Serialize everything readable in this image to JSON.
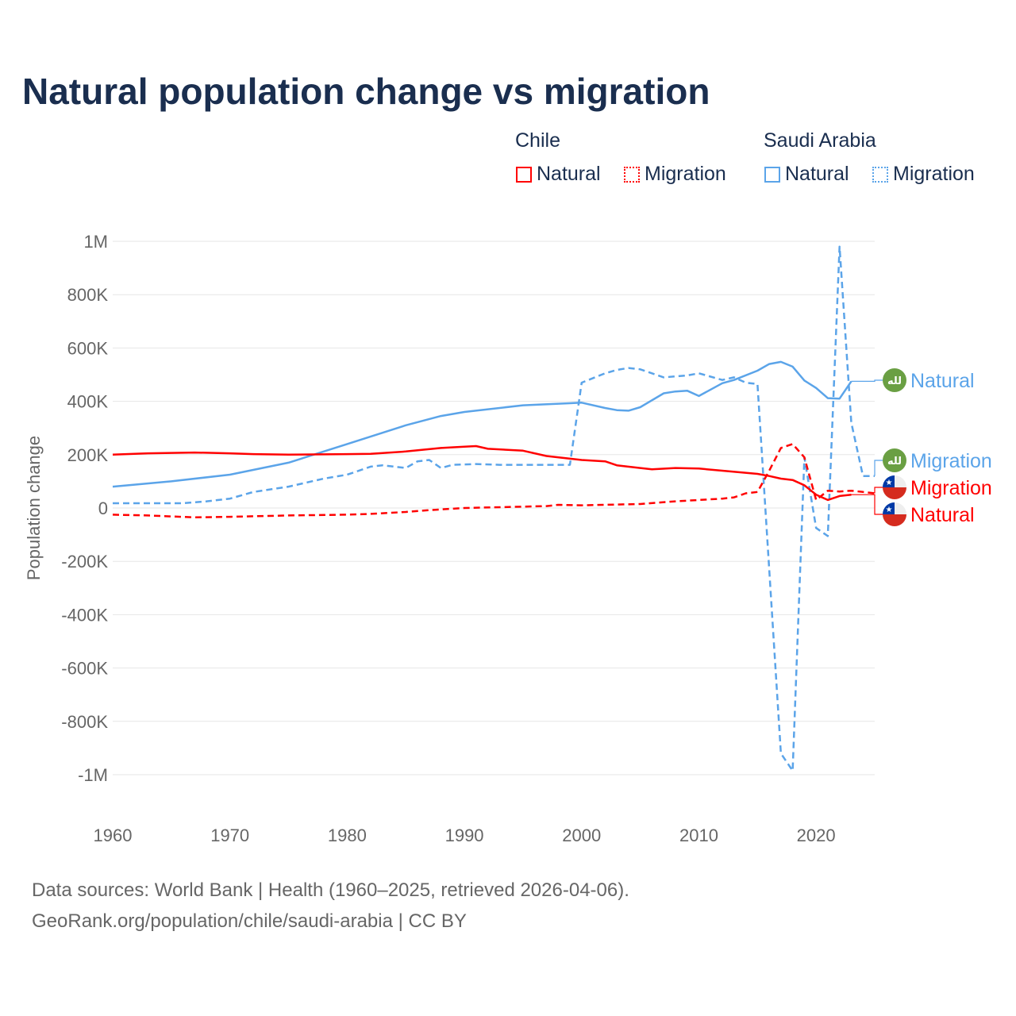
{
  "title": "Natural population change vs migration",
  "legend": {
    "groups": [
      {
        "name": "Chile",
        "items": [
          {
            "label": "Natural",
            "style": "solid",
            "color": "#ff0000"
          },
          {
            "label": "Migration",
            "style": "dotted",
            "color": "#ff0000"
          }
        ]
      },
      {
        "name": "Saudi Arabia",
        "items": [
          {
            "label": "Natural",
            "style": "solid",
            "color": "#5ba4e9"
          },
          {
            "label": "Migration",
            "style": "dotted",
            "color": "#5ba4e9"
          }
        ]
      }
    ]
  },
  "footer": {
    "line1": "Data sources: World Bank | Health (1960–2025, retrieved 2026-04-06).",
    "line2": "GeoRank.org/population/chile/saudi-arabia | CC BY"
  },
  "chart_data": {
    "type": "line",
    "title": "Natural population change vs migration",
    "xlabel": "",
    "ylabel": "Population change",
    "xlim": [
      1960,
      2025
    ],
    "ylim": [
      -1000000,
      1000000
    ],
    "x_ticks": [
      1960,
      1970,
      1980,
      1990,
      2000,
      2010,
      2020
    ],
    "x_tick_labels": [
      "1960",
      "1970",
      "1980",
      "1990",
      "2000",
      "2010",
      "2020"
    ],
    "y_ticks": [
      1000000,
      800000,
      600000,
      400000,
      200000,
      0,
      -200000,
      -400000,
      -600000,
      -800000,
      -1000000
    ],
    "y_tick_labels": [
      "1M",
      "800K",
      "600K",
      "400K",
      "200K",
      "0",
      "-200K",
      "-400K",
      "-600K",
      "-800K",
      "-1M"
    ],
    "grid": true,
    "legend_position": "top-right",
    "series": [
      {
        "name": "Chile Natural",
        "end_label": "Natural",
        "flag": "chile",
        "color": "#ff0000",
        "dash": "solid",
        "points": [
          [
            1960,
            200
          ],
          [
            1963,
            205
          ],
          [
            1967,
            208
          ],
          [
            1970,
            205
          ],
          [
            1972,
            202
          ],
          [
            1975,
            200
          ],
          [
            1980,
            202
          ],
          [
            1982,
            203
          ],
          [
            1985,
            212
          ],
          [
            1988,
            225
          ],
          [
            1990,
            230
          ],
          [
            1991,
            232
          ],
          [
            1992,
            222
          ],
          [
            1995,
            215
          ],
          [
            1997,
            195
          ],
          [
            2000,
            180
          ],
          [
            2002,
            175
          ],
          [
            2003,
            160
          ],
          [
            2005,
            150
          ],
          [
            2006,
            145
          ],
          [
            2008,
            150
          ],
          [
            2010,
            148
          ],
          [
            2012,
            140
          ],
          [
            2015,
            128
          ],
          [
            2016,
            120
          ],
          [
            2017,
            110
          ],
          [
            2018,
            105
          ],
          [
            2019,
            85
          ],
          [
            2020,
            50
          ],
          [
            2021,
            30
          ],
          [
            2022,
            45
          ],
          [
            2023,
            50
          ]
        ]
      },
      {
        "name": "Chile Migration",
        "end_label": "Migration",
        "flag": "chile",
        "color": "#ff0000",
        "dash": "dashed",
        "points": [
          [
            1960,
            -25
          ],
          [
            1963,
            -28
          ],
          [
            1967,
            -35
          ],
          [
            1970,
            -33
          ],
          [
            1975,
            -28
          ],
          [
            1980,
            -25
          ],
          [
            1982,
            -22
          ],
          [
            1985,
            -15
          ],
          [
            1987,
            -8
          ],
          [
            1990,
            0
          ],
          [
            1995,
            5
          ],
          [
            1997,
            7
          ],
          [
            1998,
            12
          ],
          [
            2000,
            10
          ],
          [
            2005,
            15
          ],
          [
            2008,
            25
          ],
          [
            2010,
            30
          ],
          [
            2012,
            35
          ],
          [
            2013,
            40
          ],
          [
            2014,
            55
          ],
          [
            2015,
            60
          ],
          [
            2016,
            140
          ],
          [
            2017,
            225
          ],
          [
            2018,
            240
          ],
          [
            2019,
            190
          ],
          [
            2020,
            30
          ],
          [
            2021,
            65
          ],
          [
            2022,
            62
          ],
          [
            2023,
            65
          ],
          [
            2024,
            60
          ],
          [
            2025,
            55
          ]
        ]
      },
      {
        "name": "Saudi Arabia Natural",
        "end_label": "Natural",
        "flag": "saudi-arabia",
        "color": "#5ba4e9",
        "dash": "solid",
        "points": [
          [
            1960,
            80
          ],
          [
            1965,
            100
          ],
          [
            1970,
            125
          ],
          [
            1975,
            170
          ],
          [
            1980,
            240
          ],
          [
            1985,
            310
          ],
          [
            1988,
            345
          ],
          [
            1990,
            360
          ],
          [
            1995,
            385
          ],
          [
            1999,
            393
          ],
          [
            2000,
            395
          ],
          [
            2002,
            375
          ],
          [
            2003,
            367
          ],
          [
            2004,
            365
          ],
          [
            2005,
            378
          ],
          [
            2007,
            430
          ],
          [
            2008,
            437
          ],
          [
            2009,
            440
          ],
          [
            2010,
            420
          ],
          [
            2012,
            468
          ],
          [
            2013,
            480
          ],
          [
            2015,
            515
          ],
          [
            2016,
            540
          ],
          [
            2017,
            548
          ],
          [
            2018,
            530
          ],
          [
            2019,
            478
          ],
          [
            2020,
            450
          ],
          [
            2021,
            412
          ],
          [
            2022,
            410
          ],
          [
            2023,
            475
          ]
        ]
      },
      {
        "name": "Saudi Arabia Migration",
        "end_label": "Migration",
        "flag": "saudi-arabia",
        "color": "#5ba4e9",
        "dash": "dashed",
        "points": [
          [
            1960,
            18
          ],
          [
            1966,
            18
          ],
          [
            1968,
            25
          ],
          [
            1970,
            35
          ],
          [
            1972,
            60
          ],
          [
            1975,
            80
          ],
          [
            1978,
            110
          ],
          [
            1980,
            125
          ],
          [
            1982,
            155
          ],
          [
            1983,
            160
          ],
          [
            1985,
            150
          ],
          [
            1986,
            175
          ],
          [
            1987,
            180
          ],
          [
            1988,
            150
          ],
          [
            1989,
            162
          ],
          [
            1991,
            165
          ],
          [
            1993,
            162
          ],
          [
            1999,
            162
          ],
          [
            2000,
            470
          ],
          [
            2002,
            505
          ],
          [
            2003,
            518
          ],
          [
            2004,
            525
          ],
          [
            2005,
            520
          ],
          [
            2007,
            490
          ],
          [
            2009,
            497
          ],
          [
            2010,
            505
          ],
          [
            2012,
            480
          ],
          [
            2013,
            490
          ],
          [
            2014,
            470
          ],
          [
            2015,
            465
          ],
          [
            2016,
            -230
          ],
          [
            2017,
            -920
          ],
          [
            2018,
            -985
          ],
          [
            2019,
            190
          ],
          [
            2020,
            -75
          ],
          [
            2021,
            -105
          ],
          [
            2022,
            980
          ],
          [
            2023,
            320
          ],
          [
            2024,
            120
          ],
          [
            2025,
            120
          ]
        ]
      }
    ],
    "value_units": "thousands"
  }
}
